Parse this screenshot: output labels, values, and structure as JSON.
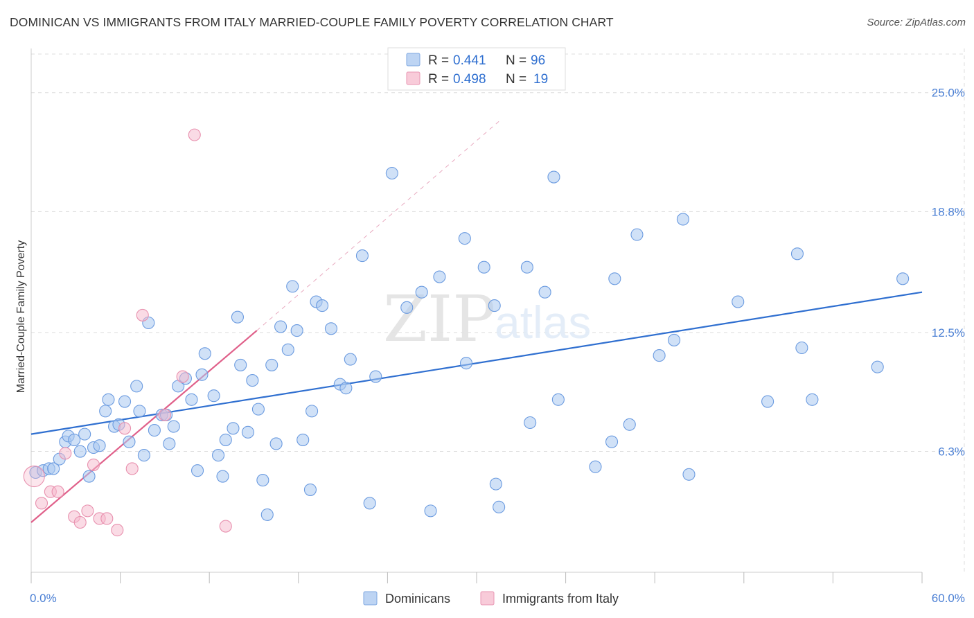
{
  "title": "DOMINICAN VS IMMIGRANTS FROM ITALY MARRIED-COUPLE FAMILY POVERTY CORRELATION CHART",
  "source": "Source: ZipAtlas.com",
  "watermark": {
    "zip": "ZIP",
    "atlas": "atlas"
  },
  "colors": {
    "blue": "#4a7fd4",
    "blue_fill": "#aac8f0",
    "blue_line": "#2f6fd0",
    "pink": "#e87aa0",
    "pink_fill": "#f5b8cc",
    "pink_line": "#e0608a",
    "grid": "#dddddd"
  },
  "chart_data": {
    "type": "scatter",
    "title": "DOMINICAN VS IMMIGRANTS FROM ITALY MARRIED-COUPLE FAMILY POVERTY CORRELATION CHART",
    "ylabel": "Married-Couple Family Poverty",
    "xlim": [
      0,
      60
    ],
    "ylim": [
      0,
      27.3
    ],
    "x_tick_labels": {
      "left": "0.0%",
      "right": "60.0%"
    },
    "y_ticks": [
      {
        "value": 6.3,
        "label": "6.3%"
      },
      {
        "value": 12.5,
        "label": "12.5%"
      },
      {
        "value": 18.8,
        "label": "18.8%"
      },
      {
        "value": 25.0,
        "label": "25.0%"
      }
    ],
    "legend": {
      "entries": [
        {
          "r_label": "R =",
          "r_value": "0.441",
          "n_label": "N =",
          "n_value": "96"
        },
        {
          "r_label": "R =",
          "r_value": "0.498",
          "n_label": "N =",
          "n_value": "19"
        }
      ],
      "bottom": [
        "Dominicans",
        "Immigrants from Italy"
      ]
    },
    "series": [
      {
        "name": "Dominicans",
        "color": "#4a7fd4",
        "trend": {
          "x0": 0,
          "y0": 7.2,
          "x1": 60,
          "y1": 14.6
        },
        "points": [
          [
            0.3,
            5.2
          ],
          [
            0.8,
            5.3
          ],
          [
            1.2,
            5.4
          ],
          [
            1.5,
            5.4
          ],
          [
            1.9,
            5.9
          ],
          [
            2.3,
            6.8
          ],
          [
            2.5,
            7.1
          ],
          [
            2.9,
            6.9
          ],
          [
            3.3,
            6.3
          ],
          [
            3.6,
            7.2
          ],
          [
            3.9,
            5.0
          ],
          [
            4.2,
            6.5
          ],
          [
            4.6,
            6.6
          ],
          [
            5.0,
            8.4
          ],
          [
            5.2,
            9.0
          ],
          [
            5.6,
            7.6
          ],
          [
            5.9,
            7.7
          ],
          [
            6.3,
            8.9
          ],
          [
            6.6,
            6.8
          ],
          [
            7.1,
            9.7
          ],
          [
            7.3,
            8.4
          ],
          [
            7.6,
            6.1
          ],
          [
            7.9,
            13.0
          ],
          [
            8.3,
            7.4
          ],
          [
            8.8,
            8.2
          ],
          [
            9.1,
            8.2
          ],
          [
            9.3,
            6.7
          ],
          [
            9.6,
            7.6
          ],
          [
            9.9,
            9.7
          ],
          [
            10.4,
            10.1
          ],
          [
            10.8,
            9.0
          ],
          [
            11.2,
            5.3
          ],
          [
            11.5,
            10.3
          ],
          [
            11.7,
            11.4
          ],
          [
            12.3,
            9.2
          ],
          [
            12.6,
            6.1
          ],
          [
            12.9,
            5.0
          ],
          [
            13.1,
            6.9
          ],
          [
            13.6,
            7.5
          ],
          [
            13.9,
            13.3
          ],
          [
            14.1,
            10.8
          ],
          [
            14.6,
            7.3
          ],
          [
            14.9,
            10.0
          ],
          [
            15.3,
            8.5
          ],
          [
            15.6,
            4.8
          ],
          [
            15.9,
            3.0
          ],
          [
            16.2,
            10.8
          ],
          [
            16.5,
            6.7
          ],
          [
            16.8,
            12.8
          ],
          [
            17.3,
            11.6
          ],
          [
            17.6,
            14.9
          ],
          [
            17.9,
            12.6
          ],
          [
            18.3,
            6.9
          ],
          [
            18.8,
            4.3
          ],
          [
            18.9,
            8.4
          ],
          [
            19.2,
            14.1
          ],
          [
            19.6,
            13.9
          ],
          [
            20.2,
            12.7
          ],
          [
            20.8,
            9.8
          ],
          [
            21.2,
            9.6
          ],
          [
            21.5,
            11.1
          ],
          [
            22.3,
            16.5
          ],
          [
            22.8,
            3.6
          ],
          [
            23.2,
            10.2
          ],
          [
            24.3,
            20.8
          ],
          [
            25.3,
            13.8
          ],
          [
            26.3,
            14.6
          ],
          [
            26.9,
            3.2
          ],
          [
            27.5,
            15.4
          ],
          [
            29.2,
            17.4
          ],
          [
            29.3,
            10.9
          ],
          [
            30.5,
            15.9
          ],
          [
            31.2,
            13.9
          ],
          [
            31.3,
            4.6
          ],
          [
            31.5,
            3.4
          ],
          [
            33.4,
            15.9
          ],
          [
            33.6,
            7.8
          ],
          [
            34.6,
            14.6
          ],
          [
            35.2,
            20.6
          ],
          [
            35.5,
            9.0
          ],
          [
            38.0,
            5.5
          ],
          [
            39.1,
            6.8
          ],
          [
            39.3,
            15.3
          ],
          [
            40.3,
            7.7
          ],
          [
            40.8,
            17.6
          ],
          [
            42.3,
            11.3
          ],
          [
            43.3,
            12.1
          ],
          [
            43.9,
            18.4
          ],
          [
            44.3,
            5.1
          ],
          [
            47.6,
            14.1
          ],
          [
            49.6,
            8.9
          ],
          [
            51.6,
            16.6
          ],
          [
            51.9,
            11.7
          ],
          [
            52.6,
            9.0
          ],
          [
            57.0,
            10.7
          ],
          [
            58.7,
            15.3
          ]
        ]
      },
      {
        "name": "Immigrants from Italy",
        "color": "#e87aa0",
        "trend": {
          "x0": 0,
          "y0": 2.6,
          "x1": 15.2,
          "y1": 12.6
        },
        "trend_extension": {
          "x0": 15.2,
          "y0": 12.6,
          "x1": 31.5,
          "y1": 23.5
        },
        "points": [
          [
            0.2,
            5.0
          ],
          [
            0.7,
            3.6
          ],
          [
            1.3,
            4.2
          ],
          [
            1.8,
            4.2
          ],
          [
            2.3,
            6.2
          ],
          [
            2.9,
            2.9
          ],
          [
            3.3,
            2.6
          ],
          [
            3.8,
            3.2
          ],
          [
            4.2,
            5.6
          ],
          [
            4.6,
            2.8
          ],
          [
            5.1,
            2.8
          ],
          [
            5.8,
            2.2
          ],
          [
            6.3,
            7.5
          ],
          [
            6.8,
            5.4
          ],
          [
            7.5,
            13.4
          ],
          [
            9.0,
            8.2
          ],
          [
            10.2,
            10.2
          ],
          [
            11.0,
            22.8
          ],
          [
            13.1,
            2.4
          ]
        ]
      }
    ]
  }
}
